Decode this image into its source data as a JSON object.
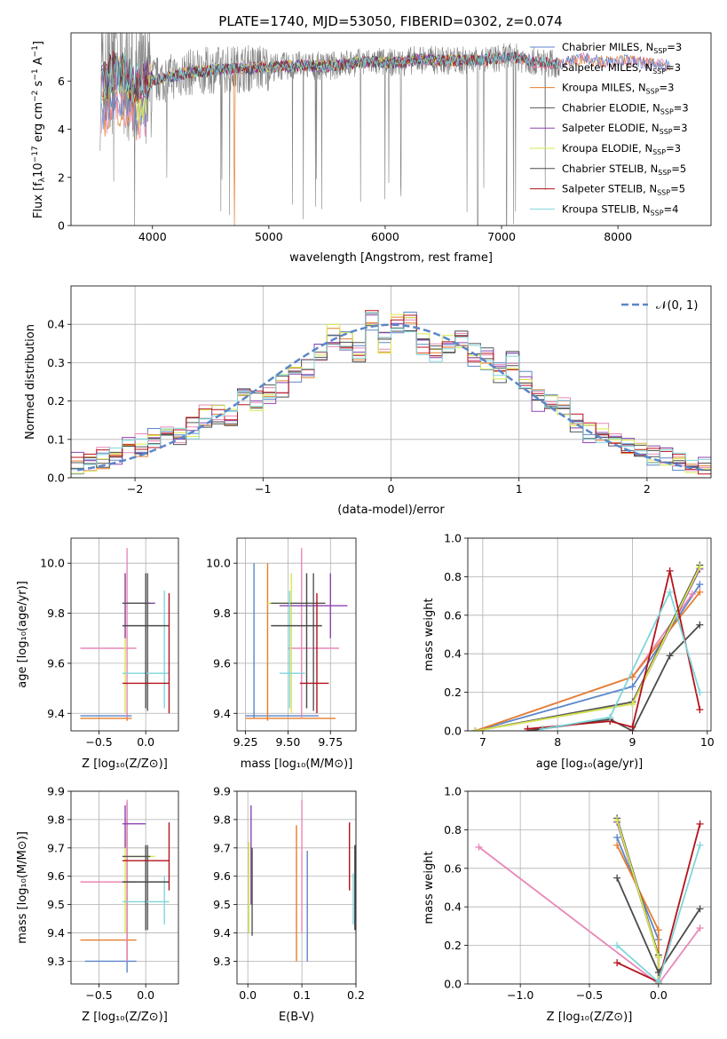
{
  "figure_title": "PLATE=1740, MJD=53050, FIBERID=0302, z=0.074",
  "colors": {
    "chabrier_miles": "#5b86c9",
    "salpeter_miles": "#e987b7",
    "kroupa_miles": "#e67e2e",
    "chabrier_elodie": "#555555",
    "salpeter_elodie": "#8d44b0",
    "kroupa_elodie": "#d6e94a",
    "chabrier_stelib": "#4a4a4a",
    "salpeter_stelib": "#b5121b",
    "kroupa_stelib": "#7fd6db",
    "data": "#808080",
    "normal": "#5b86c9"
  },
  "chart_data": [
    {
      "id": "spectrum",
      "type": "line",
      "xlabel": "wavelength [Angstrom, rest frame]",
      "ylabel": "Flux [f_λ10⁻¹⁷ erg cm⁻² s⁻¹ A⁻¹]",
      "xlim": [
        3300,
        8800
      ],
      "ylim": [
        0,
        8
      ],
      "xticks": [
        "4000",
        "5000",
        "6000",
        "7000",
        "8000"
      ],
      "yticks": [
        "0",
        "2",
        "4",
        "6"
      ],
      "legend": [
        {
          "label": "Chabrier MILES, N_SSP=3",
          "sub": "SSP",
          "pre": "Chabrier MILES, N",
          "post": "=3",
          "color_key": "chabrier_miles"
        },
        {
          "label": "Salpeter MILES, N_SSP=3",
          "sub": "SSP",
          "pre": "Salpeter MILES, N",
          "post": "=3",
          "color_key": "salpeter_miles"
        },
        {
          "label": "Kroupa MILES, N_SSP=3",
          "sub": "SSP",
          "pre": "Kroupa MILES, N",
          "post": "=3",
          "color_key": "kroupa_miles"
        },
        {
          "label": "Chabrier ELODIE, N_SSP=3",
          "sub": "SSP",
          "pre": "Chabrier ELODIE, N",
          "post": "=3",
          "color_key": "chabrier_elodie"
        },
        {
          "label": "Salpeter ELODIE, N_SSP=3",
          "sub": "SSP",
          "pre": "Salpeter ELODIE, N",
          "post": "=3",
          "color_key": "salpeter_elodie"
        },
        {
          "label": "Kroupa ELODIE, N_SSP=3",
          "sub": "SSP",
          "pre": "Kroupa ELODIE, N",
          "post": "=3",
          "color_key": "kroupa_elodie"
        },
        {
          "label": "Chabrier STELIB, N_SSP=5",
          "sub": "SSP",
          "pre": "Chabrier STELIB, N",
          "post": "=5",
          "color_key": "chabrier_stelib"
        },
        {
          "label": "Salpeter STELIB, N_SSP=5",
          "sub": "SSP",
          "pre": "Salpeter STELIB, N",
          "post": "=5",
          "color_key": "salpeter_stelib"
        },
        {
          "label": "Kroupa STELIB, N_SSP=4",
          "sub": "SSP",
          "pre": "Kroupa STELIB, N",
          "post": "=4",
          "color_key": "kroupa_stelib"
        }
      ],
      "continuum": {
        "x": [
          3550,
          3650,
          3750,
          3850,
          3950,
          4100,
          4300,
          4500,
          4700,
          4900,
          5100,
          5300,
          5500,
          5700,
          5900,
          6100,
          6300,
          6500,
          6700,
          6900,
          7100,
          7300,
          7500,
          7700,
          7900,
          8100,
          8300,
          8450
        ],
        "y": [
          5.7,
          6.4,
          6.3,
          5.8,
          6.0,
          6.1,
          6.35,
          6.45,
          6.5,
          6.55,
          6.6,
          6.65,
          6.6,
          6.75,
          6.8,
          6.75,
          6.9,
          6.85,
          6.85,
          6.9,
          7.0,
          6.8,
          6.7,
          6.95,
          6.8,
          6.85,
          6.7,
          6.65
        ]
      }
    },
    {
      "id": "residuals",
      "type": "step-histogram",
      "xlabel": "(data-model)/error",
      "ylabel": "Normed distribution",
      "xlim": [
        -2.5,
        2.5
      ],
      "ylim": [
        0,
        0.5
      ],
      "xticks": [
        "−2",
        "−1",
        "0",
        "1",
        "2"
      ],
      "yticks": [
        "0.0",
        "0.1",
        "0.2",
        "0.3",
        "0.4"
      ],
      "legend": [
        "𝒩(0, 1)"
      ],
      "bin_edges": [
        -2.5,
        -2.4,
        -2.3,
        -2.2,
        -2.1,
        -2.0,
        -1.9,
        -1.8,
        -1.7,
        -1.6,
        -1.5,
        -1.4,
        -1.3,
        -1.2,
        -1.1,
        -1.0,
        -0.9,
        -0.8,
        -0.7,
        -0.6,
        -0.5,
        -0.4,
        -0.3,
        -0.2,
        -0.1,
        0.0,
        0.1,
        0.2,
        0.3,
        0.4,
        0.5,
        0.6,
        0.7,
        0.8,
        0.9,
        1.0,
        1.1,
        1.2,
        1.3,
        1.4,
        1.5,
        1.6,
        1.7,
        1.8,
        1.9,
        2.0,
        2.1,
        2.2,
        2.3,
        2.4,
        2.5
      ],
      "base_counts": [
        0.04,
        0.045,
        0.05,
        0.06,
        0.09,
        0.085,
        0.1,
        0.12,
        0.11,
        0.13,
        0.16,
        0.17,
        0.15,
        0.22,
        0.2,
        0.22,
        0.24,
        0.26,
        0.29,
        0.33,
        0.37,
        0.36,
        0.33,
        0.41,
        0.35,
        0.4,
        0.41,
        0.35,
        0.32,
        0.35,
        0.36,
        0.32,
        0.31,
        0.27,
        0.3,
        0.26,
        0.2,
        0.2,
        0.18,
        0.14,
        0.12,
        0.12,
        0.1,
        0.08,
        0.07,
        0.06,
        0.05,
        0.04,
        0.03,
        0.03
      ]
    },
    {
      "id": "age-vs-Z",
      "type": "errorbar",
      "xlabel": "Z [log₁₀(Z/Z⊙)]",
      "ylabel": "age  [log₁₀(age/yr)]",
      "xlim": [
        -0.8,
        0.35
      ],
      "ylim": [
        9.33,
        10.1
      ],
      "xticks": [
        "−0.5",
        "0.0"
      ],
      "ytick_values": [
        9.4,
        9.6,
        9.8,
        10.0
      ],
      "yticks": [
        "9.4",
        "9.6",
        "9.8",
        "10.0"
      ],
      "points": [
        {
          "color_key": "chabrier_miles",
          "x": -0.2,
          "y": 9.39,
          "x0": -0.7,
          "x1": -0.15,
          "y0": 9.38,
          "y1": 9.4
        },
        {
          "color_key": "kroupa_miles",
          "x": -0.2,
          "y": 9.38,
          "x0": -0.7,
          "x1": -0.15,
          "y0": 9.37,
          "y1": 9.39
        },
        {
          "color_key": "salpeter_miles",
          "x": -0.2,
          "y": 9.66,
          "x0": -0.7,
          "x1": -0.1,
          "y0": 9.38,
          "y1": 10.06
        },
        {
          "color_key": "kroupa_elodie",
          "x": -0.22,
          "y": 9.84,
          "x0": -0.25,
          "x1": 0.1,
          "y0": 9.4,
          "y1": 9.96
        },
        {
          "color_key": "salpeter_elodie",
          "x": -0.22,
          "y": 9.84,
          "x0": -0.25,
          "x1": 0.1,
          "y0": 9.7,
          "y1": 9.96
        },
        {
          "color_key": "chabrier_elodie",
          "x": 0.02,
          "y": 9.84,
          "x0": -0.25,
          "x1": 0.05,
          "y0": 9.41,
          "y1": 9.96
        },
        {
          "color_key": "kroupa_stelib",
          "x": 0.2,
          "y": 9.56,
          "x0": -0.25,
          "x1": 0.25,
          "y0": 9.42,
          "y1": 9.89
        },
        {
          "color_key": "chabrier_stelib",
          "x": 0.0,
          "y": 9.75,
          "x0": -0.25,
          "x1": 0.25,
          "y0": 9.42,
          "y1": 9.96
        },
        {
          "color_key": "salpeter_stelib",
          "x": 0.25,
          "y": 9.52,
          "x0": -0.25,
          "x1": 0.25,
          "y0": 9.4,
          "y1": 9.88
        }
      ]
    },
    {
      "id": "age-vs-mass",
      "type": "errorbar",
      "xlabel": "mass [log₁₀(M/M⊙)]",
      "ylabel": "",
      "xlim": [
        9.2,
        9.9
      ],
      "ylim": [
        9.33,
        10.1
      ],
      "xtick_values": [
        9.25,
        9.5,
        9.75
      ],
      "xticks": [
        "9.25",
        "9.50",
        "9.75"
      ],
      "ytick_values": [
        9.4,
        9.6,
        9.8,
        10.0
      ],
      "yticks": [
        "9.4",
        "9.6",
        "9.8",
        "10.0"
      ],
      "points": [
        {
          "color_key": "chabrier_miles",
          "x": 9.3,
          "y": 9.39,
          "x0": 9.25,
          "x1": 9.68,
          "y0": 9.38,
          "y1": 10.0
        },
        {
          "color_key": "kroupa_miles",
          "x": 9.38,
          "y": 9.38,
          "x0": 9.25,
          "x1": 9.78,
          "y0": 9.37,
          "y1": 10.0
        },
        {
          "color_key": "salpeter_miles",
          "x": 9.58,
          "y": 9.66,
          "x0": 9.5,
          "x1": 9.8,
          "y0": 9.38,
          "y1": 10.06
        },
        {
          "color_key": "kroupa_elodie",
          "x": 9.52,
          "y": 9.84,
          "x0": 9.38,
          "x1": 9.72,
          "y0": 9.4,
          "y1": 9.96
        },
        {
          "color_key": "salpeter_elodie",
          "x": 9.75,
          "y": 9.83,
          "x0": 9.45,
          "x1": 9.85,
          "y0": 9.7,
          "y1": 9.96
        },
        {
          "color_key": "chabrier_elodie",
          "x": 9.65,
          "y": 9.84,
          "x0": 9.4,
          "x1": 9.72,
          "y0": 9.41,
          "y1": 9.96
        },
        {
          "color_key": "kroupa_stelib",
          "x": 9.51,
          "y": 9.56,
          "x0": 9.45,
          "x1": 9.6,
          "y0": 9.42,
          "y1": 9.89
        },
        {
          "color_key": "chabrier_stelib",
          "x": 9.61,
          "y": 9.75,
          "x0": 9.4,
          "x1": 9.7,
          "y0": 9.42,
          "y1": 9.96
        },
        {
          "color_key": "salpeter_stelib",
          "x": 9.67,
          "y": 9.52,
          "x0": 9.57,
          "x1": 9.74,
          "y0": 9.4,
          "y1": 9.88
        }
      ]
    },
    {
      "id": "massweight-vs-age",
      "type": "line",
      "xlabel": "age  [log₁₀(age/yr)]",
      "ylabel": "mass weight",
      "xlim": [
        6.8,
        10.05
      ],
      "ylim": [
        0,
        1.0
      ],
      "xtick_values": [
        7,
        8,
        9,
        10
      ],
      "xticks": [
        "7",
        "8",
        "9",
        "10"
      ],
      "ytick_values": [
        0,
        0.2,
        0.4,
        0.6,
        0.8,
        1.0
      ],
      "yticks": [
        "0.0",
        "0.2",
        "0.4",
        "0.6",
        "0.8",
        "1.0"
      ],
      "series": [
        {
          "color_key": "chabrier_miles",
          "x": [
            6.9,
            9.0,
            9.9
          ],
          "y": [
            0.0,
            0.23,
            0.76
          ]
        },
        {
          "color_key": "salpeter_miles",
          "x": [
            6.9,
            9.0,
            9.8
          ],
          "y": [
            0.0,
            0.28,
            0.71
          ]
        },
        {
          "color_key": "kroupa_miles",
          "x": [
            6.9,
            9.0,
            9.9
          ],
          "y": [
            0.0,
            0.28,
            0.72
          ]
        },
        {
          "color_key": "chabrier_elodie",
          "x": [
            6.9,
            9.0,
            9.9
          ],
          "y": [
            0.0,
            0.15,
            0.86
          ]
        },
        {
          "color_key": "salpeter_elodie",
          "x": [
            6.9,
            9.0,
            9.9
          ],
          "y": [
            0.0,
            0.14,
            0.84
          ]
        },
        {
          "color_key": "kroupa_elodie",
          "x": [
            6.9,
            9.0,
            9.9
          ],
          "y": [
            0.0,
            0.14,
            0.85
          ]
        },
        {
          "color_key": "chabrier_stelib",
          "x": [
            7.6,
            8.7,
            9.0,
            9.5,
            9.9
          ],
          "y": [
            0.0,
            0.06,
            0.0,
            0.39,
            0.55
          ]
        },
        {
          "color_key": "salpeter_stelib",
          "x": [
            7.6,
            8.7,
            9.0,
            9.5,
            9.9
          ],
          "y": [
            0.01,
            0.05,
            0.02,
            0.83,
            0.11
          ]
        },
        {
          "color_key": "kroupa_stelib",
          "x": [
            7.8,
            8.7,
            9.5,
            9.9
          ],
          "y": [
            0.01,
            0.07,
            0.72,
            0.2
          ]
        }
      ]
    },
    {
      "id": "mass-vs-Z",
      "type": "errorbar",
      "xlabel": "Z [log₁₀(Z/Z⊙)]",
      "ylabel": "mass [log₁₀(M/M⊙)]",
      "xlim": [
        -0.8,
        0.35
      ],
      "ylim": [
        9.22,
        9.9
      ],
      "xticks": [
        "−0.5",
        "0.0"
      ],
      "ytick_values": [
        9.3,
        9.4,
        9.5,
        9.6,
        9.7,
        9.8,
        9.9
      ],
      "yticks": [
        "9.3",
        "9.4",
        "9.5",
        "9.6",
        "9.7",
        "9.8",
        "9.9"
      ],
      "points": [
        {
          "color_key": "chabrier_miles",
          "x": -0.2,
          "y": 9.3,
          "x0": -0.65,
          "x1": -0.1,
          "y0": 9.26,
          "y1": 9.86
        },
        {
          "color_key": "kroupa_miles",
          "x": -0.2,
          "y": 9.375,
          "x0": -0.7,
          "x1": -0.1,
          "y0": 9.3,
          "y1": 9.8
        },
        {
          "color_key": "salpeter_miles",
          "x": -0.2,
          "y": 9.58,
          "x0": -0.7,
          "x1": -0.1,
          "y0": 9.3,
          "y1": 9.87
        },
        {
          "color_key": "kroupa_elodie",
          "x": -0.22,
          "y": 9.67,
          "x0": -0.25,
          "x1": 0.1,
          "y0": 9.4,
          "y1": 9.73
        },
        {
          "color_key": "salpeter_elodie",
          "x": -0.22,
          "y": 9.785,
          "x0": -0.25,
          "x1": 0.0,
          "y0": 9.7,
          "y1": 9.85
        },
        {
          "color_key": "chabrier_elodie",
          "x": 0.02,
          "y": 9.67,
          "x0": -0.25,
          "x1": 0.05,
          "y0": 9.41,
          "y1": 9.71
        },
        {
          "color_key": "kroupa_stelib",
          "x": 0.2,
          "y": 9.51,
          "x0": -0.25,
          "x1": 0.25,
          "y0": 9.43,
          "y1": 9.6
        },
        {
          "color_key": "chabrier_stelib",
          "x": 0.0,
          "y": 9.58,
          "x0": -0.25,
          "x1": 0.25,
          "y0": 9.41,
          "y1": 9.71
        },
        {
          "color_key": "salpeter_stelib",
          "x": 0.25,
          "y": 9.655,
          "x0": -0.25,
          "x1": 0.25,
          "y0": 9.55,
          "y1": 9.79
        }
      ]
    },
    {
      "id": "mass-vs-EBV",
      "type": "errorbar",
      "xlabel": "E(B-V)",
      "ylabel": "",
      "xlim": [
        -0.02,
        0.2
      ],
      "ylim": [
        9.22,
        9.9
      ],
      "xtick_values": [
        0.0,
        0.1,
        0.2
      ],
      "xticks": [
        "0.0",
        "0.1",
        "0.2"
      ],
      "ytick_values": [
        9.3,
        9.4,
        9.5,
        9.6,
        9.7,
        9.8,
        9.9
      ],
      "yticks": [
        "9.3",
        "9.4",
        "9.5",
        "9.6",
        "9.7",
        "9.8",
        "9.9"
      ],
      "points": [
        {
          "color_key": "chabrier_miles",
          "x": 0.11,
          "y": 9.6,
          "y0": 9.3,
          "y1": 9.69
        },
        {
          "color_key": "kroupa_miles",
          "x": 0.09,
          "y": 9.6,
          "y0": 9.3,
          "y1": 9.78
        },
        {
          "color_key": "salpeter_miles",
          "x": 0.1,
          "y": 9.6,
          "y0": 9.4,
          "y1": 9.87
        },
        {
          "color_key": "kroupa_elodie",
          "x": 0.002,
          "y": 9.55,
          "y0": 9.4,
          "y1": 9.72
        },
        {
          "color_key": "salpeter_elodie",
          "x": 0.006,
          "y": 9.6,
          "y0": 9.5,
          "y1": 9.85
        },
        {
          "color_key": "chabrier_elodie",
          "x": 0.008,
          "y": 9.5,
          "y0": 9.39,
          "y1": 9.7
        },
        {
          "color_key": "kroupa_stelib",
          "x": 0.195,
          "y": 9.5,
          "y0": 9.43,
          "y1": 9.61
        },
        {
          "color_key": "chabrier_stelib",
          "x": 0.198,
          "y": 9.55,
          "y0": 9.41,
          "y1": 9.71
        },
        {
          "color_key": "salpeter_stelib",
          "x": 0.188,
          "y": 9.65,
          "y0": 9.55,
          "y1": 9.79
        }
      ]
    },
    {
      "id": "massweight-vs-Z",
      "type": "line",
      "xlabel": "Z [log₁₀(Z/Z⊙)]",
      "ylabel": "mass weight",
      "xlim": [
        -1.38,
        0.38
      ],
      "ylim": [
        0,
        1.0
      ],
      "xtick_values": [
        -1.0,
        -0.5,
        0.0
      ],
      "xticks": [
        "−1.0",
        "−0.5",
        "0.0"
      ],
      "ytick_values": [
        0,
        0.2,
        0.4,
        0.6,
        0.8,
        1.0
      ],
      "yticks": [
        "0.0",
        "0.2",
        "0.4",
        "0.6",
        "0.8",
        "1.0"
      ],
      "series": [
        {
          "color_key": "chabrier_miles",
          "x": [
            -0.3,
            0.0,
            0.0
          ],
          "y": [
            0.76,
            0.23,
            0.0
          ]
        },
        {
          "color_key": "salpeter_miles",
          "x": [
            -1.3,
            0.0,
            0.3
          ],
          "y": [
            0.71,
            0.0,
            0.29
          ]
        },
        {
          "color_key": "kroupa_miles",
          "x": [
            -0.3,
            0.0,
            0.0
          ],
          "y": [
            0.72,
            0.28,
            0.0
          ]
        },
        {
          "color_key": "chabrier_elodie",
          "x": [
            -0.3,
            0.0,
            0.0
          ],
          "y": [
            0.86,
            0.15,
            0.0
          ]
        },
        {
          "color_key": "salpeter_elodie",
          "x": [
            -0.3,
            0.0,
            0.0
          ],
          "y": [
            0.84,
            0.14,
            0.0
          ]
        },
        {
          "color_key": "kroupa_elodie",
          "x": [
            -0.3,
            0.0,
            0.0
          ],
          "y": [
            0.85,
            0.14,
            0.0
          ]
        },
        {
          "color_key": "chabrier_stelib",
          "x": [
            -0.3,
            0.0,
            0.3
          ],
          "y": [
            0.55,
            0.06,
            0.39
          ]
        },
        {
          "color_key": "salpeter_stelib",
          "x": [
            -0.3,
            0.0,
            0.3
          ],
          "y": [
            0.11,
            0.01,
            0.83
          ]
        },
        {
          "color_key": "kroupa_stelib",
          "x": [
            -0.3,
            0.0,
            0.3
          ],
          "y": [
            0.2,
            0.01,
            0.72
          ]
        }
      ]
    }
  ]
}
